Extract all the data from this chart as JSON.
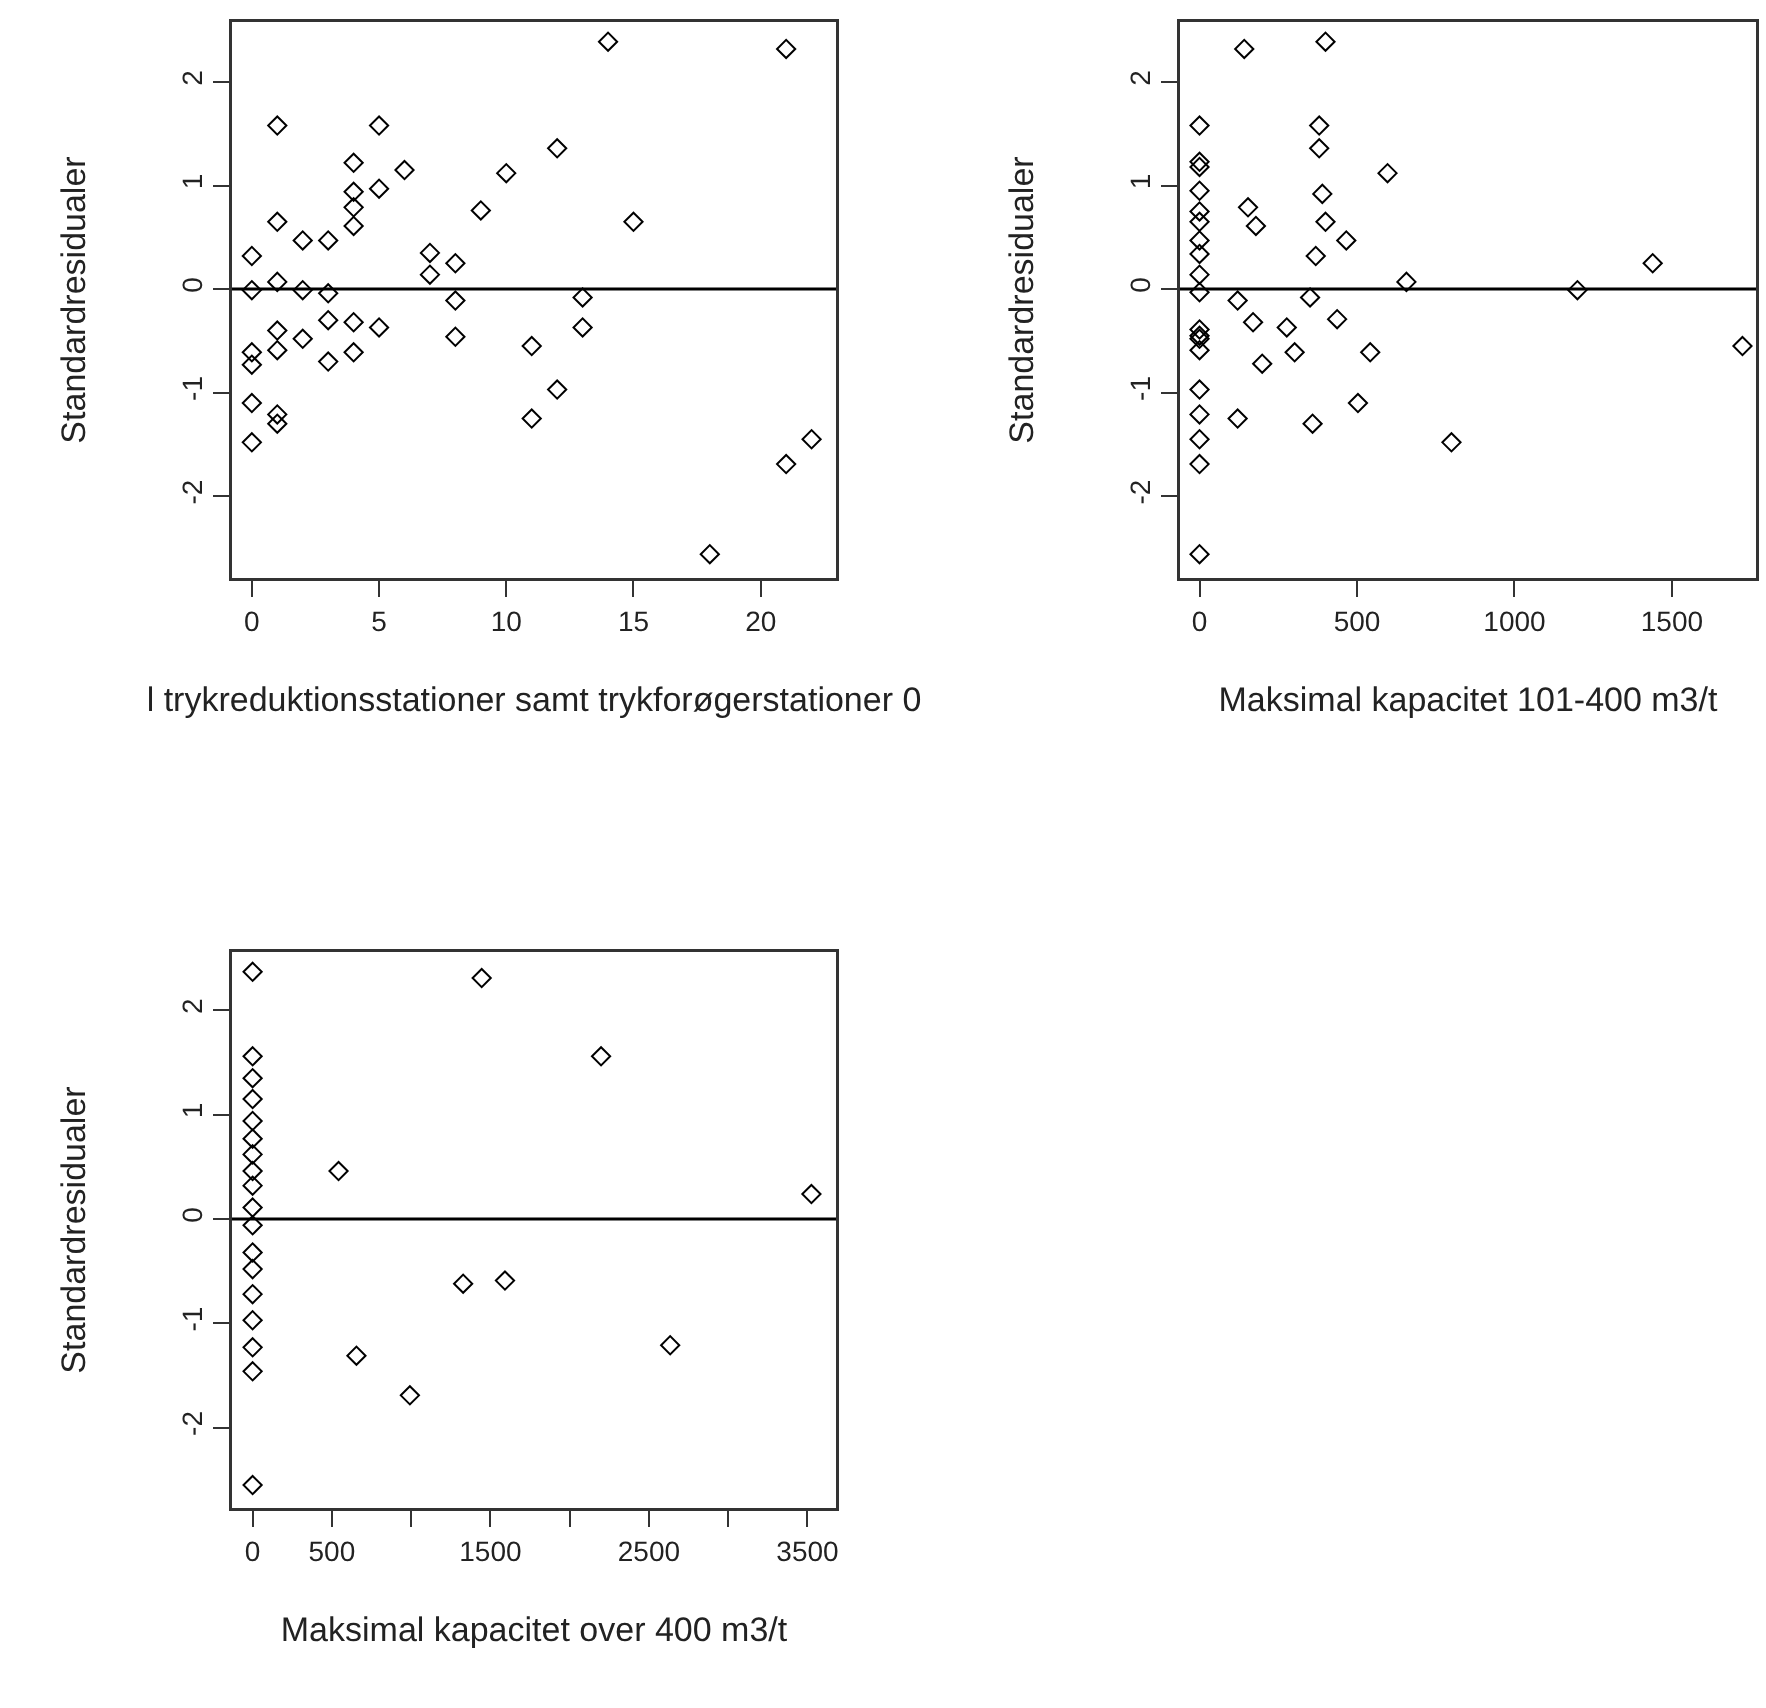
{
  "chart_data": [
    {
      "type": "scatter",
      "xlabel": "l trykreduktionsstationer samt trykforøgerstationer 0",
      "ylabel": "Standardresidualer",
      "color": "#000000",
      "marker": "diamond",
      "grid": false,
      "x": [
        14,
        21,
        1,
        5,
        12,
        4,
        6,
        10,
        4,
        5,
        4,
        9,
        1,
        4,
        15,
        2,
        3,
        0,
        7,
        8,
        7,
        1,
        0,
        2,
        3,
        8,
        13,
        3,
        4,
        5,
        13,
        1,
        2,
        0,
        1,
        0,
        3,
        4,
        8,
        11,
        12,
        0,
        1,
        1,
        11,
        0,
        22,
        21,
        18
      ],
      "values": [
        2.39,
        2.32,
        1.58,
        1.58,
        1.36,
        1.22,
        1.15,
        1.12,
        0.94,
        0.97,
        0.79,
        0.76,
        0.65,
        0.61,
        0.65,
        0.47,
        0.47,
        0.32,
        0.35,
        0.25,
        0.14,
        0.07,
        -0.01,
        -0.01,
        -0.04,
        -0.11,
        -0.08,
        -0.3,
        -0.32,
        -0.37,
        -0.37,
        -0.4,
        -0.48,
        -0.61,
        -0.59,
        -0.73,
        -0.7,
        -0.61,
        -0.46,
        -0.55,
        -0.97,
        -1.1,
        -1.21,
        -1.3,
        -1.25,
        -1.48,
        -1.45,
        -1.69,
        -2.56
      ],
      "xlim": [
        -0.78,
        22.96
      ],
      "xticks": [
        0,
        5,
        10,
        15,
        20
      ],
      "ylim": [
        -2.79,
        2.58
      ],
      "yticks": [
        -2,
        -1,
        0,
        1,
        2
      ],
      "ref_lines": [
        {
          "axis": "y",
          "value": 0
        }
      ]
    },
    {
      "type": "scatter",
      "xlabel": "Maksimal kapacitet 101-400 m3/t",
      "ylabel": "Standardresidualer",
      "color": "#000000",
      "marker": "diamond",
      "grid": false,
      "x": [
        0,
        0,
        0,
        0,
        0,
        0,
        0,
        0,
        0,
        0,
        0,
        0,
        0,
        0,
        0,
        0,
        0,
        0,
        0,
        142,
        400,
        380,
        380,
        597,
        390,
        154,
        179,
        400,
        466,
        369,
        657,
        1439,
        1200,
        121,
        351,
        170,
        277,
        437,
        302,
        542,
        199,
        1724,
        503,
        121,
        359,
        800
      ],
      "values": [
        -2.56,
        1.58,
        1.23,
        1.18,
        0.95,
        0.75,
        0.65,
        0.47,
        0.34,
        0.14,
        -0.03,
        -0.39,
        -0.45,
        -0.59,
        -0.97,
        -1.21,
        -1.45,
        -1.69,
        -0.48,
        2.32,
        2.39,
        1.58,
        1.36,
        1.12,
        0.92,
        0.79,
        0.61,
        0.65,
        0.47,
        0.32,
        0.07,
        0.25,
        -0.01,
        -0.11,
        -0.08,
        -0.32,
        -0.37,
        -0.29,
        -0.61,
        -0.61,
        -0.72,
        -0.55,
        -1.1,
        -1.25,
        -1.3,
        -1.48
      ],
      "xlim": [
        -62,
        1767
      ],
      "xticks": [
        0,
        500,
        1000,
        1500
      ],
      "ylim": [
        -2.79,
        2.58
      ],
      "yticks": [
        -2,
        -1,
        0,
        1,
        2
      ],
      "ref_lines": [
        {
          "axis": "y",
          "value": 0
        }
      ]
    },
    {
      "type": "scatter",
      "xlabel": "Maksimal kapacitet over 400 m3/t",
      "ylabel": "Standardresidualer",
      "color": "#000000",
      "marker": "diamond",
      "grid": false,
      "x": [
        0,
        0,
        0,
        0,
        0,
        0,
        0,
        0,
        0,
        0,
        0,
        0,
        0,
        0,
        0,
        0,
        0,
        0,
        1445,
        2198,
        542,
        3525,
        1328,
        1592,
        655,
        992,
        2634
      ],
      "values": [
        2.37,
        1.56,
        1.35,
        1.15,
        0.94,
        0.77,
        0.62,
        0.46,
        0.32,
        0.11,
        -0.06,
        -0.32,
        -0.48,
        -0.72,
        -0.97,
        -1.23,
        -1.46,
        -2.55,
        2.31,
        1.56,
        0.46,
        0.24,
        -0.62,
        -0.59,
        -1.31,
        -1.69,
        -1.21
      ],
      "xlim": [
        -130,
        3680
      ],
      "xticks": [
        0,
        500,
        {
          "value": 1000,
          "label": null
        },
        1500,
        {
          "value": 2000,
          "label": null
        },
        2500,
        {
          "value": 3000,
          "label": null
        },
        3500
      ],
      "ylim": [
        -2.77,
        2.56
      ],
      "yticks": [
        -2,
        -1,
        0,
        1,
        2
      ],
      "ref_lines": [
        {
          "axis": "y",
          "value": 0
        }
      ]
    }
  ]
}
